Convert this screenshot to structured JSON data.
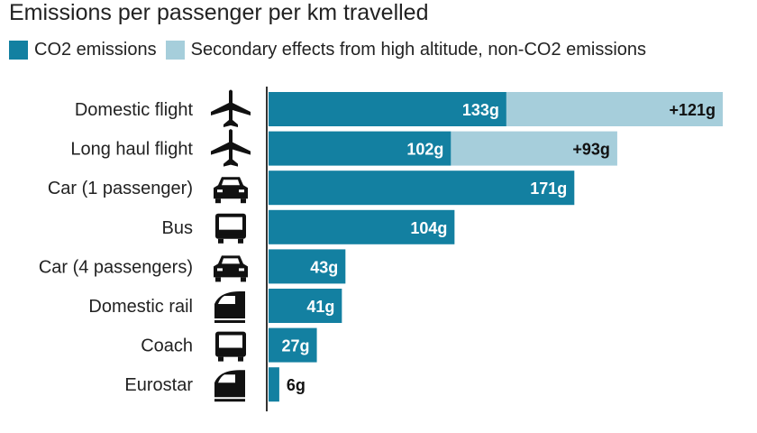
{
  "chart_data": {
    "type": "bar",
    "orientation": "horizontal",
    "stacked": true,
    "title": "Emissions per passenger per km travelled",
    "categories": [
      "Domestic flight",
      "Long haul flight",
      "Car (1 passenger)",
      "Bus",
      "Car (4 passengers)",
      "Domestic rail",
      "Coach",
      "Eurostar"
    ],
    "category_icons": [
      "plane-icon",
      "plane-icon",
      "car-icon",
      "bus-icon",
      "car-icon",
      "train-icon",
      "bus-icon",
      "train-icon"
    ],
    "series": [
      {
        "name": "CO2 emissions",
        "color": "#1380A1",
        "values": [
          133,
          102,
          171,
          104,
          43,
          41,
          27,
          6
        ],
        "labels": [
          "133g",
          "102g",
          "171g",
          "104g",
          "43g",
          "41g",
          "27g",
          "6g"
        ]
      },
      {
        "name": "Secondary effects from high altitude, non-CO2 emissions",
        "color": "#A6CEDB",
        "values": [
          121,
          93,
          0,
          0,
          0,
          0,
          0,
          0
        ],
        "labels": [
          "+121g",
          "+93g",
          "",
          "",
          "",
          "",
          "",
          ""
        ]
      }
    ],
    "xlim": [
      0,
      254
    ],
    "legend_position": "top-left",
    "grid": false
  }
}
